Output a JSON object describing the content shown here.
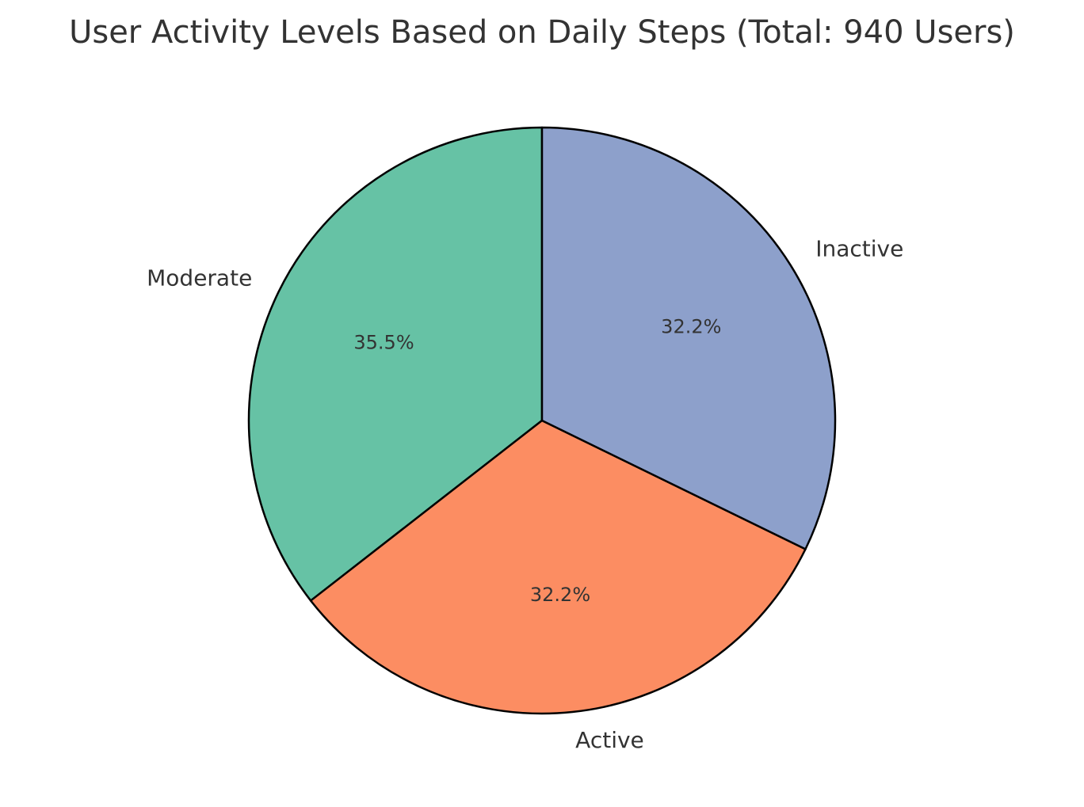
{
  "chart_data": {
    "type": "pie",
    "title": "User Activity Levels Based on Daily Steps (Total: 940 Users)",
    "start_angle_deg": 90,
    "direction": "counterclockwise",
    "slices": [
      {
        "label": "Moderate",
        "value": 35.5,
        "pct_label": "35.5%",
        "color": "#66c2a5"
      },
      {
        "label": "Active",
        "value": 32.2,
        "pct_label": "32.2%",
        "color": "#fc8d62"
      },
      {
        "label": "Inactive",
        "value": 32.2,
        "pct_label": "32.2%",
        "color": "#8da0cb"
      }
    ],
    "edge_color": "#000000"
  }
}
